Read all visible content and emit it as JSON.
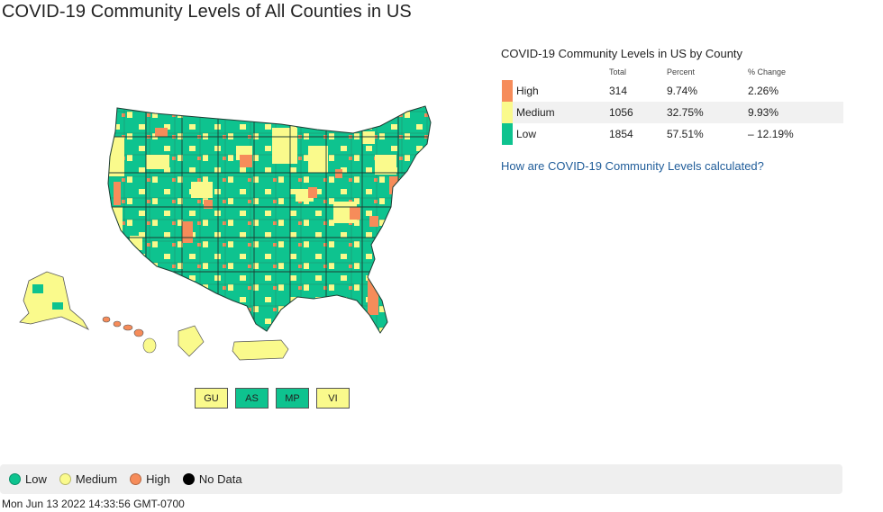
{
  "title": "COVID-19 Community Levels of All Counties in US",
  "colors": {
    "low": "#0ec38f",
    "medium": "#fafa8c",
    "high": "#f68c5a",
    "no_data": "#000000"
  },
  "territories": [
    {
      "label": "GU",
      "level": "medium"
    },
    {
      "label": "AS",
      "level": "low"
    },
    {
      "label": "MP",
      "level": "low"
    },
    {
      "label": "VI",
      "level": "medium"
    }
  ],
  "summary": {
    "title": "COVID-19 Community Levels in US by County",
    "headers": {
      "total": "Total",
      "percent": "Percent",
      "change": "% Change"
    },
    "rows": [
      {
        "level": "High",
        "total": "314",
        "percent": "9.74%",
        "change": "2.26%"
      },
      {
        "level": "Medium",
        "total": "1056",
        "percent": "32.75%",
        "change": "9.93%"
      },
      {
        "level": "Low",
        "total": "1854",
        "percent": "57.51%",
        "change": "– 12.19%"
      }
    ],
    "link": "How are COVID-19 Community Levels calculated?"
  },
  "legend": {
    "low": "Low",
    "medium": "Medium",
    "high": "High",
    "no_data": "No Data"
  },
  "timestamp": "Mon Jun 13 2022 14:33:56 GMT-0700"
}
